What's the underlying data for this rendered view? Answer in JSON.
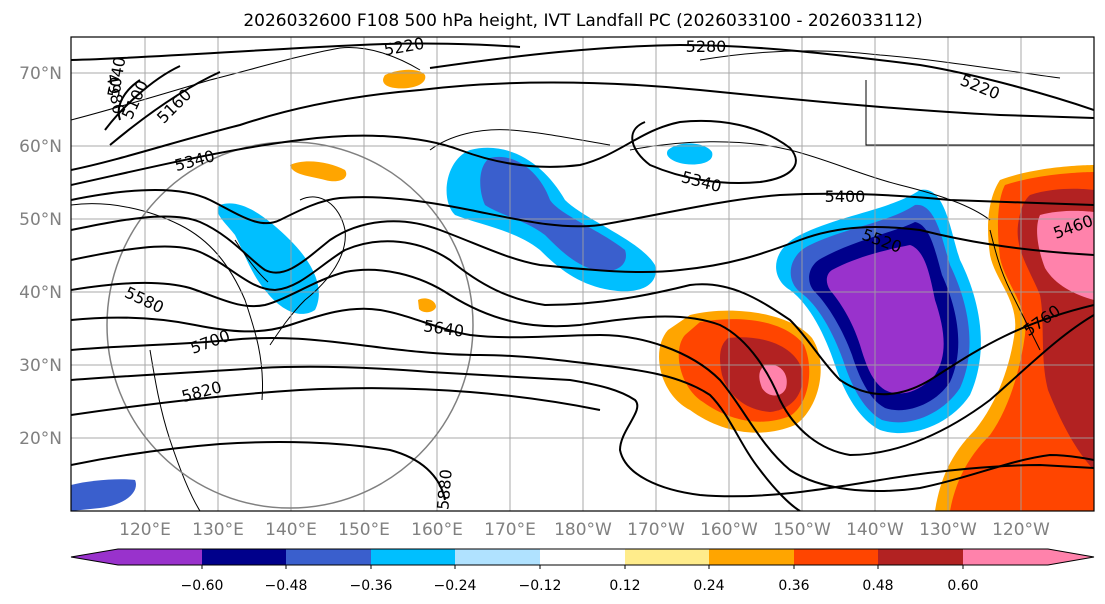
{
  "title": "2026032600 F108 500 hPa height, IVT Landfall PC (2026033100 - 2026033112)",
  "map": {
    "lat_labels": [
      "70°N",
      "60°N",
      "50°N",
      "40°N",
      "30°N",
      "20°N"
    ],
    "lon_labels": [
      "120°E",
      "130°E",
      "140°E",
      "150°E",
      "160°E",
      "170°E",
      "180°W",
      "170°W",
      "160°W",
      "150°W",
      "140°W",
      "130°W",
      "120°W"
    ],
    "contour_labels": [
      "5220",
      "5280",
      "5220",
      "4980",
      "5040",
      "5100",
      "5160",
      "5340",
      "5340",
      "5400",
      "5520",
      "5460",
      "5580",
      "5640",
      "5700",
      "5760",
      "5820",
      "5880"
    ]
  },
  "colorbar": {
    "tick_labels": [
      "−0.60",
      "−0.48",
      "−0.36",
      "−0.24",
      "−0.12",
      "0.12",
      "0.24",
      "0.36",
      "0.48",
      "0.60"
    ],
    "colors": [
      "#9932cc",
      "#00008b",
      "#3a5fcd",
      "#00bfff",
      "#b0e2ff",
      "#ffffff",
      "#ffec8b",
      "#ffa500",
      "#ff4500",
      "#b22222",
      "#ff82ab"
    ]
  }
}
